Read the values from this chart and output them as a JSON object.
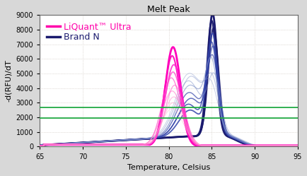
{
  "title": "Melt Peak",
  "xlabel": "Temperature, Celsius",
  "ylabel": "-d(RFU)/dT",
  "xlim": [
    65,
    95
  ],
  "ylim": [
    0,
    9000
  ],
  "xticks": [
    65,
    70,
    75,
    80,
    85,
    90,
    95
  ],
  "yticks": [
    0,
    1000,
    2000,
    3000,
    4000,
    5000,
    6000,
    7000,
    8000,
    9000
  ],
  "outer_bg_color": "#d8d8d8",
  "plot_bg_color": "#ffffff",
  "grid_color": "#c8c0b8",
  "green_line1_y": 2700,
  "green_line2_y": 1950,
  "green_color1": "#22aa44",
  "green_color2": "#22aa44",
  "legend_liquant": "LiQuant™ Ultra",
  "legend_brand": "Brand N",
  "liquant_color": "#ff00aa",
  "brand_dark_color": "#1a1a6e",
  "brand_mid_color": "#3344aa",
  "brand_light_color": "#8899cc",
  "title_fontsize": 9,
  "label_fontsize": 8,
  "tick_fontsize": 7,
  "legend_fontsize": 9
}
